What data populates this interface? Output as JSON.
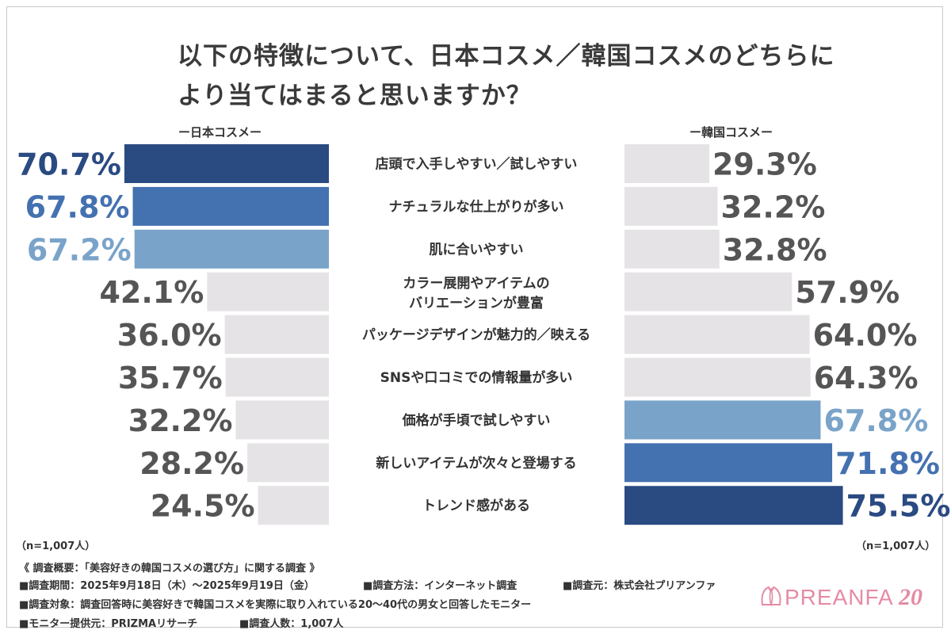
{
  "title": {
    "line1": "以下の特徴について、日本コスメ／韓国コスメのどちらに",
    "line2": "より当てはまると思いますか？"
  },
  "legend": {
    "japan": "ー日本コスメー",
    "korea": "ー韓国コスメー"
  },
  "colors": {
    "dark": "#2a4a82",
    "mid": "#4471b0",
    "light": "#7aa3c9",
    "gray_bar": "#e6e3e6",
    "gray_text": "#555555"
  },
  "chart_data": {
    "type": "bar",
    "layout": "butterfly",
    "categories": [
      "店頭で入手しやすい／試しやすい",
      "ナチュラルな仕上がりが多い",
      "肌に合いやすい",
      "カラー展開やアイテムの\nバリエーションが豊富",
      "パッケージデザインが魅力的／映える",
      "SNSや口コミでの情報量が多い",
      "価格が手頃で試しやすい",
      "新しいアイテムが次々と登場する",
      "トレンド感がある"
    ],
    "series": [
      {
        "name": "日本コスメ",
        "values": [
          70.7,
          67.8,
          67.2,
          42.1,
          36.0,
          35.7,
          32.2,
          28.2,
          24.5
        ],
        "labels": [
          "70.7%",
          "67.8%",
          "67.2%",
          "42.1%",
          "36.0%",
          "35.7%",
          "32.2%",
          "28.2%",
          "24.5%"
        ],
        "highlight": [
          "dark",
          "mid",
          "light",
          "gray",
          "gray",
          "gray",
          "gray",
          "gray",
          "gray"
        ]
      },
      {
        "name": "韓国コスメ",
        "values": [
          29.3,
          32.2,
          32.8,
          57.9,
          64.0,
          64.3,
          67.8,
          71.8,
          75.5
        ],
        "labels": [
          "29.3%",
          "32.2%",
          "32.8%",
          "57.9%",
          "64.0%",
          "64.3%",
          "67.8%",
          "71.8%",
          "75.5%"
        ],
        "highlight": [
          "gray",
          "gray",
          "gray",
          "gray",
          "gray",
          "gray",
          "light",
          "mid",
          "dark"
        ]
      }
    ],
    "unit": "%"
  },
  "notes": {
    "n_left": "（n=1,007人）",
    "n_right": "（n=1,007人）"
  },
  "survey": {
    "heading": "《 調査概要：「美容好きの韓国コスメの選び方」に関する調査 》",
    "period": "■調査期間：2025年9月18日（木）～2025年9月19日（金）",
    "method": "■調査方法：インターネット調査",
    "company": "■調査元：株式会社プリアンファ",
    "target": "■調査対象：調査回答時に美容好きで韓国コスメを実際に取り入れている20～40代の男女と回答したモニター",
    "provider": "■モニター提供元：PRIZMAリサーチ",
    "count": "■調査人数：1,007人"
  },
  "logo": {
    "text": "PREANFA",
    "anniversary": "20"
  }
}
